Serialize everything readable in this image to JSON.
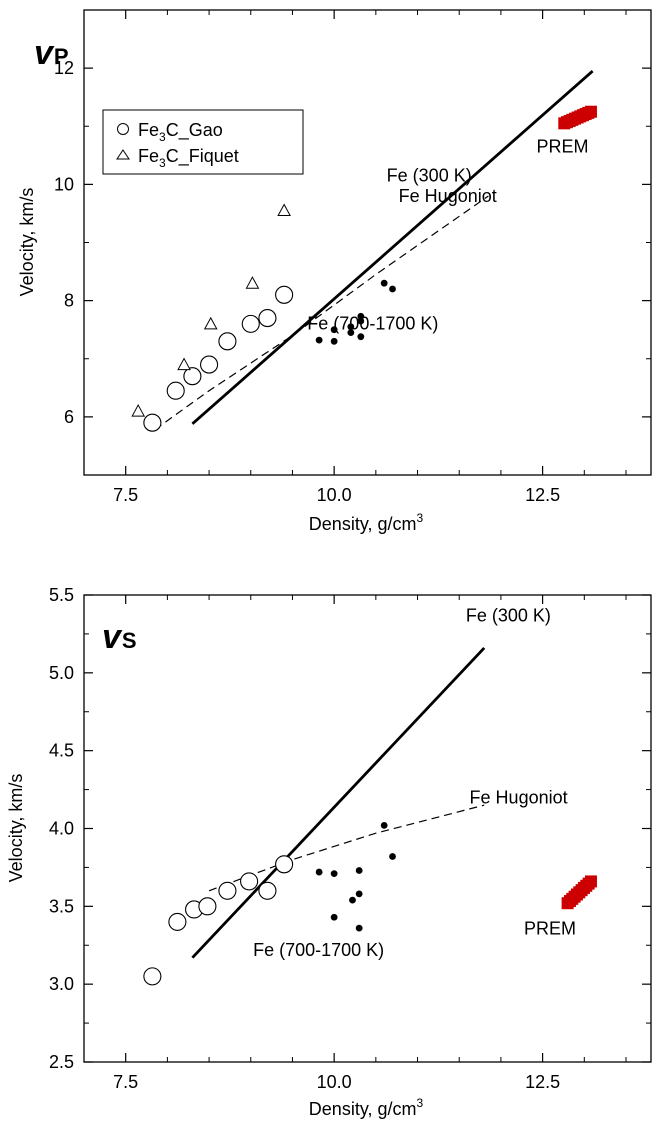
{
  "chart_data": [
    {
      "type": "scatter",
      "panel_label": "v",
      "panel_label_sub": "P",
      "xlabel": "Density, g/cm",
      "xlabel_sup": "3",
      "ylabel": "Velocity, km/s",
      "xlim": [
        7.0,
        13.8
      ],
      "ylim": [
        5.0,
        13.0
      ],
      "xticks": [
        7.5,
        10.0,
        12.5
      ],
      "xtick_labels": [
        "7.5",
        "10.0",
        "12.5"
      ],
      "yticks": [
        6,
        8,
        10,
        12
      ],
      "ytick_labels": [
        "6",
        "8",
        "10",
        "12"
      ],
      "legend_position": "top-left",
      "series": [
        {
          "name": "Fe3C_Gao",
          "label_parts": [
            "Fe",
            "3",
            "C_Gao"
          ],
          "marker": "open-circle",
          "x": [
            7.82,
            8.1,
            8.3,
            8.5,
            8.72,
            9.0,
            9.2,
            9.4
          ],
          "y": [
            5.9,
            6.45,
            6.7,
            6.9,
            7.3,
            7.6,
            7.7,
            8.1
          ]
        },
        {
          "name": "Fe3C_Fiquet",
          "label_parts": [
            "Fe",
            "3",
            "C_Fiquet"
          ],
          "marker": "open-triangle",
          "x": [
            7.65,
            8.2,
            8.52,
            9.02,
            9.4
          ],
          "y": [
            6.1,
            6.9,
            7.6,
            8.3,
            9.55
          ]
        },
        {
          "name": "Fe (700-1700 K)",
          "marker": "filled-dot",
          "x": [
            9.82,
            10.0,
            10.0,
            10.2,
            10.2,
            10.32,
            10.32,
            10.32,
            10.6,
            10.7
          ],
          "y": [
            7.32,
            7.3,
            7.5,
            7.45,
            7.55,
            7.38,
            7.65,
            7.73,
            8.3,
            8.2
          ]
        },
        {
          "name": "Fe (300 K)",
          "marker": "thick-line",
          "x": [
            8.3,
            13.1
          ],
          "y": [
            5.88,
            11.95
          ]
        },
        {
          "name": "Fe Hugoniot",
          "marker": "dashed-line",
          "x": [
            7.85,
            8.5,
            9.5,
            10.5,
            11.85
          ],
          "y": [
            5.78,
            6.45,
            7.4,
            8.45,
            9.8
          ]
        },
        {
          "name": "PREM",
          "marker": "red-band",
          "x": [
            12.76,
            13.08
          ],
          "y": [
            11.05,
            11.25
          ]
        }
      ],
      "annotations": [
        {
          "text": "Fe (300 K)",
          "x": 11.65,
          "y": 10.05
        },
        {
          "text": "Fe Hugoniot",
          "x": 11.95,
          "y": 9.7
        },
        {
          "text": "Fe (700-1700 K)",
          "x": 11.25,
          "y": 7.5
        },
        {
          "text": "PREM",
          "x": 13.05,
          "y": 10.55
        }
      ]
    },
    {
      "type": "scatter",
      "panel_label": "v",
      "panel_label_sub": "S",
      "xlabel": "Density, g/cm",
      "xlabel_sup": "3",
      "ylabel": "Velocity, km/s",
      "xlim": [
        7.0,
        13.8
      ],
      "ylim": [
        2.5,
        5.5
      ],
      "xticks": [
        7.5,
        10.0,
        12.5
      ],
      "xtick_labels": [
        "7.5",
        "10.0",
        "12.5"
      ],
      "yticks": [
        2.5,
        3.0,
        3.5,
        4.0,
        4.5,
        5.0,
        5.5
      ],
      "ytick_labels": [
        "2.5",
        "3.0",
        "3.5",
        "4.0",
        "4.5",
        "5.0",
        "5.5"
      ],
      "series": [
        {
          "name": "Fe3C_Gao",
          "marker": "open-circle",
          "x": [
            7.82,
            8.12,
            8.32,
            8.48,
            8.72,
            8.98,
            9.2,
            9.4
          ],
          "y": [
            3.05,
            3.4,
            3.48,
            3.5,
            3.6,
            3.66,
            3.6,
            3.77
          ]
        },
        {
          "name": "Fe (700-1700 K)",
          "marker": "filled-dot",
          "x": [
            9.82,
            10.0,
            10.0,
            10.22,
            10.3,
            10.3,
            10.3,
            10.6,
            10.7
          ],
          "y": [
            3.72,
            3.71,
            3.43,
            3.54,
            3.36,
            3.58,
            3.73,
            4.02,
            3.82
          ]
        },
        {
          "name": "Fe (300 K)",
          "marker": "thick-line",
          "x": [
            8.3,
            11.8
          ],
          "y": [
            3.17,
            5.16
          ]
        },
        {
          "name": "Fe Hugoniot",
          "marker": "dashed-line",
          "x": [
            8.5,
            9.5,
            10.5,
            11.8
          ],
          "y": [
            3.6,
            3.8,
            3.97,
            4.15
          ]
        },
        {
          "name": "PREM",
          "marker": "red-band",
          "x": [
            12.8,
            13.08
          ],
          "y": [
            3.52,
            3.66
          ]
        }
      ],
      "annotations": [
        {
          "text": "Fe (300 K)",
          "x": 12.6,
          "y": 5.33
        },
        {
          "text": "Fe Hugoniot",
          "x": 12.8,
          "y": 4.16
        },
        {
          "text": "Fe (700-1700 K)",
          "x": 10.6,
          "y": 3.18
        },
        {
          "text": "PREM",
          "x": 12.9,
          "y": 3.32
        }
      ]
    }
  ],
  "colors": {
    "axis": "#000000",
    "prem": "#cc0000"
  }
}
